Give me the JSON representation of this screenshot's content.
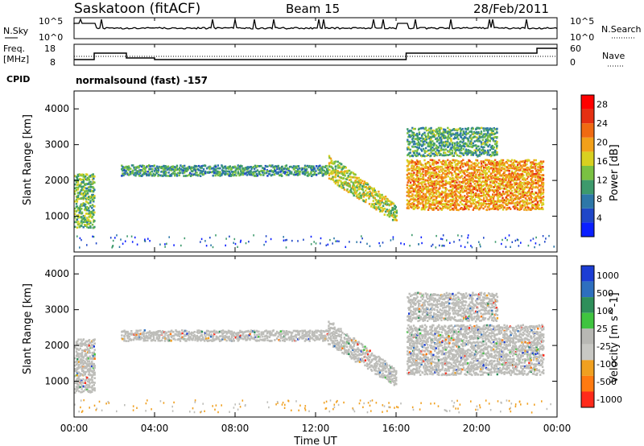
{
  "header": {
    "station": "Saskatoon (fitACF)",
    "beam": "Beam 15",
    "date": "28/Feb/2011"
  },
  "noise_panel": {
    "left_label": "N.Sky",
    "right_label": "N.Search",
    "ticks_left": [
      "10^5",
      "10^0"
    ],
    "ticks_right": [
      "10^5",
      "10^0"
    ]
  },
  "freq_panel": {
    "left_label_1": "Freq.",
    "left_label_2": "[MHz]",
    "right_label": "Nave",
    "ticks_left": [
      "18",
      "8"
    ],
    "ticks_right": [
      "60",
      "0"
    ]
  },
  "cpid": {
    "label": "CPID",
    "value": "normalsound (fast) -157"
  },
  "colors": {
    "power_scale": [
      "#0a1fff",
      "#1f47c8",
      "#2d77a8",
      "#3d9a6c",
      "#7ac142",
      "#d8d020",
      "#f2a019",
      "#f06a12",
      "#e53012",
      "#ff0000"
    ],
    "velocity_scale": [
      "#1c3dd4",
      "#2e6fbf",
      "#2e8f5a",
      "#3fc43f",
      "#b8b8b4",
      "#c8c8c4",
      "#f0a020",
      "#ff7a10",
      "#ff2a1a"
    ],
    "ground_scatter": "#bdbdb9"
  },
  "chart_data": [
    {
      "type": "heatmap",
      "panel": "power",
      "ylabel": "Slant Range [km]",
      "xlabel": "Time UT",
      "xlim": [
        "00:00",
        "24:00"
      ],
      "ylim": [
        0,
        4500
      ],
      "x_ticks": [
        "00:00",
        "04:00",
        "08:00",
        "12:00",
        "16:00",
        "20:00",
        "00:00"
      ],
      "y_ticks": [
        "1000",
        "2000",
        "3000",
        "4000"
      ],
      "colorbar": {
        "label": "Power [dB]",
        "ticks": [
          "4",
          "8",
          "12",
          "16",
          "20",
          "24",
          "28"
        ],
        "range": [
          0,
          30
        ]
      },
      "echo_bands": [
        {
          "t_start_h": 0.0,
          "t_end_h": 1.0,
          "range_low_km": 700,
          "range_high_km": 2200,
          "power_db": 12
        },
        {
          "t_start_h": 2.3,
          "t_end_h": 12.6,
          "range_low_km": 2150,
          "range_high_km": 2450,
          "power_db": 9
        },
        {
          "t_start_h": 12.6,
          "t_end_h": 16.0,
          "range_low_km": 1050,
          "range_high_km": 2300,
          "power_db": 14
        },
        {
          "t_start_h": 16.5,
          "t_end_h": 23.3,
          "range_low_km": 1200,
          "range_high_km": 2600,
          "power_db": 19
        },
        {
          "t_start_h": 16.5,
          "t_end_h": 21.0,
          "range_low_km": 2700,
          "range_high_km": 3500,
          "power_db": 10
        }
      ]
    },
    {
      "type": "heatmap",
      "panel": "velocity",
      "ylabel": "Slant Range [km]",
      "xlabel": "Time UT",
      "xlim": [
        "00:00",
        "24:00"
      ],
      "ylim": [
        0,
        4500
      ],
      "x_ticks": [
        "00:00",
        "04:00",
        "08:00",
        "12:00",
        "16:00",
        "20:00",
        "00:00"
      ],
      "y_ticks": [
        "1000",
        "2000",
        "3000",
        "4000"
      ],
      "colorbar": {
        "label": "Velocity [m s^-1]",
        "ticks": [
          "1000",
          "500",
          "100",
          "25",
          "-25",
          "-100",
          "-500",
          "-1000"
        ]
      },
      "note_ground_scatter": "grey"
    },
    {
      "type": "line",
      "panel": "noise",
      "series": [
        {
          "name": "N.Sky",
          "style": "solid"
        },
        {
          "name": "N.Search",
          "style": "dotted"
        }
      ]
    },
    {
      "type": "line",
      "panel": "frequency",
      "series": [
        {
          "name": "Freq.",
          "style": "solid"
        },
        {
          "name": "Nave",
          "style": "dotted"
        }
      ]
    }
  ]
}
